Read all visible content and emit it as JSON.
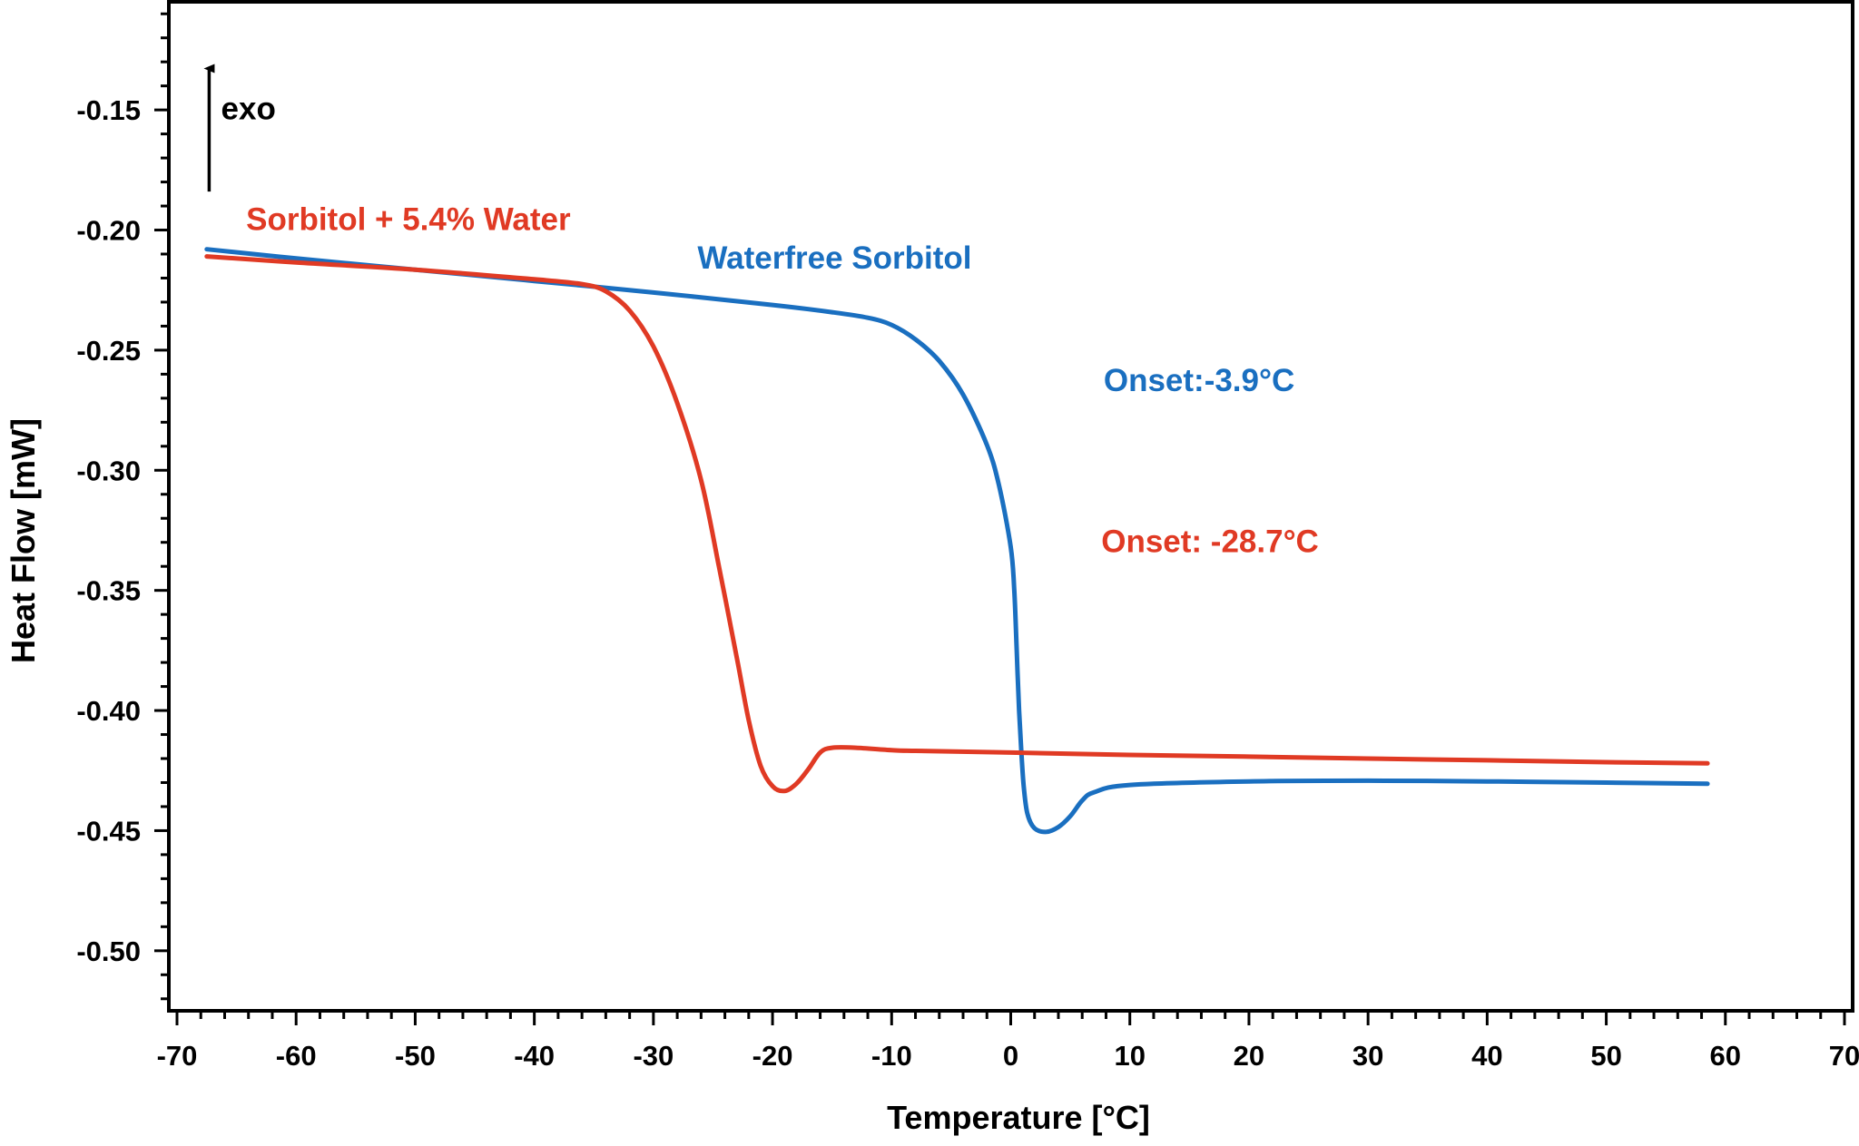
{
  "chart_data": {
    "type": "line",
    "title": "",
    "xlabel": "Temperature [°C]",
    "ylabel": "Heat Flow [mW]",
    "xlim": [
      -70,
      70
    ],
    "ylim": [
      -0.525,
      -0.105
    ],
    "x_ticks": [
      -70,
      -60,
      -50,
      -40,
      -30,
      -20,
      -10,
      0,
      10,
      20,
      30,
      40,
      50,
      60,
      70
    ],
    "x_tick_labels": [
      "-70",
      "-60",
      "-50",
      "-40",
      "-30",
      "-20",
      "-10",
      "0",
      "10",
      "20",
      "30",
      "40",
      "50",
      "60",
      "70"
    ],
    "y_ticks": [
      -0.15,
      -0.2,
      -0.25,
      -0.3,
      -0.35,
      -0.4,
      -0.45,
      -0.5
    ],
    "y_tick_labels": [
      "-0.15",
      "-0.20",
      "-0.25",
      "-0.30",
      "-0.35",
      "-0.40",
      "-0.45",
      "-0.50"
    ],
    "grid": false,
    "series": [
      {
        "name": "Waterfree Sorbitol",
        "color": "#1a6fc0",
        "points": [
          [
            -67.5,
            -0.208
          ],
          [
            -60,
            -0.2118
          ],
          [
            -50,
            -0.2165
          ],
          [
            -40,
            -0.2212
          ],
          [
            -30,
            -0.226
          ],
          [
            -20,
            -0.2312
          ],
          [
            -15,
            -0.2342
          ],
          [
            -12,
            -0.2365
          ],
          [
            -10,
            -0.2395
          ],
          [
            -8,
            -0.2455
          ],
          [
            -6,
            -0.2545
          ],
          [
            -4,
            -0.2685
          ],
          [
            -2,
            -0.2895
          ],
          [
            -1,
            -0.306
          ],
          [
            0,
            -0.332
          ],
          [
            0.3,
            -0.35
          ],
          [
            0.5,
            -0.375
          ],
          [
            0.7,
            -0.4
          ],
          [
            0.9,
            -0.418
          ],
          [
            1.1,
            -0.432
          ],
          [
            1.4,
            -0.443
          ],
          [
            2,
            -0.449
          ],
          [
            3,
            -0.4505
          ],
          [
            4,
            -0.4485
          ],
          [
            5,
            -0.444
          ],
          [
            6,
            -0.4375
          ],
          [
            7,
            -0.434
          ],
          [
            10,
            -0.431
          ],
          [
            20,
            -0.4295
          ],
          [
            30,
            -0.4292
          ],
          [
            40,
            -0.4295
          ],
          [
            50,
            -0.43
          ],
          [
            58.5,
            -0.4305
          ]
        ]
      },
      {
        "name": "Sorbitol + 5.4% Water",
        "color": "#e03a24",
        "points": [
          [
            -67.5,
            -0.211
          ],
          [
            -60,
            -0.2135
          ],
          [
            -50,
            -0.2165
          ],
          [
            -40,
            -0.2205
          ],
          [
            -36,
            -0.2225
          ],
          [
            -34,
            -0.2255
          ],
          [
            -32,
            -0.2335
          ],
          [
            -30,
            -0.2485
          ],
          [
            -28,
            -0.272
          ],
          [
            -26,
            -0.304
          ],
          [
            -24.5,
            -0.34
          ],
          [
            -23,
            -0.378
          ],
          [
            -22,
            -0.404
          ],
          [
            -21,
            -0.423
          ],
          [
            -20,
            -0.4315
          ],
          [
            -19,
            -0.4335
          ],
          [
            -18,
            -0.4305
          ],
          [
            -17,
            -0.4245
          ],
          [
            -16,
            -0.4175
          ],
          [
            -15,
            -0.4155
          ],
          [
            -13,
            -0.4155
          ],
          [
            -10,
            -0.4165
          ],
          [
            -8,
            -0.4168
          ],
          [
            0,
            -0.4175
          ],
          [
            10,
            -0.4185
          ],
          [
            20,
            -0.4192
          ],
          [
            30,
            -0.42
          ],
          [
            40,
            -0.4207
          ],
          [
            50,
            -0.4215
          ],
          [
            58.5,
            -0.422
          ]
        ]
      }
    ],
    "annotations": [
      {
        "text": "Sorbitol + 5.4% Water",
        "x": -64.2,
        "y": -0.2,
        "color": "#e03a24"
      },
      {
        "text": "Waterfree Sorbitol",
        "x": -26.3,
        "y": -0.216,
        "color": "#1a6fc0"
      },
      {
        "text": "Onset:-3.9°C",
        "x": 7.8,
        "y": -0.267,
        "color": "#1a6fc0"
      },
      {
        "text": "Onset: -28.7°C",
        "x": 7.6,
        "y": -0.334,
        "color": "#e03a24"
      },
      {
        "text": "exo",
        "x": -66.3,
        "y": -0.154,
        "color": "#000000"
      }
    ],
    "exo_arrow": {
      "x": -67.3,
      "y_from": -0.184,
      "y_to": -0.132
    }
  }
}
